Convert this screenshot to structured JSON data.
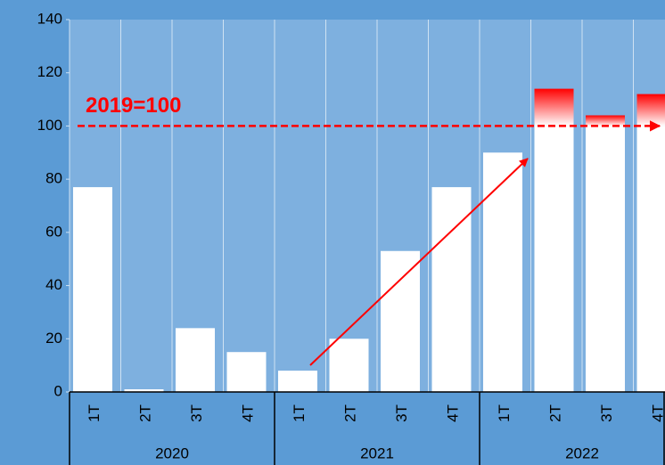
{
  "chart_data": {
    "type": "bar",
    "categories": [
      "1T",
      "2T",
      "3T",
      "4T",
      "1T",
      "2T",
      "3T",
      "4T",
      "1T",
      "2T",
      "3T",
      "4T"
    ],
    "groups": [
      "2020",
      "2021",
      "2022"
    ],
    "values": [
      77,
      1,
      24,
      15,
      8,
      20,
      53,
      77,
      90,
      114,
      104,
      112
    ],
    "color": "#ffffff",
    "excess_color": "#ff0000",
    "ylim": [
      0,
      140
    ],
    "yticks": [
      0,
      20,
      40,
      60,
      80,
      100,
      120,
      140
    ],
    "reference": 100,
    "reference_label": "2019=100",
    "reference_color": "#ff0000",
    "grid": true
  }
}
